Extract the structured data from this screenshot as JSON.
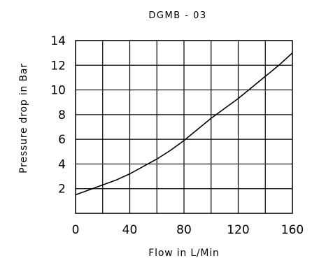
{
  "chart_data": {
    "type": "line",
    "title": "DGMB - 03",
    "xlabel": "Flow in L/Min",
    "ylabel": "Pressure drop in Bar",
    "xlim": [
      0,
      160
    ],
    "ylim": [
      0,
      14
    ],
    "x_ticks": [
      0,
      40,
      80,
      120,
      160
    ],
    "x_tick_labels": [
      "0",
      "40",
      "80",
      "120",
      "160"
    ],
    "y_ticks": [
      2,
      4,
      6,
      8,
      10,
      12,
      14
    ],
    "y_tick_labels": [
      "2",
      "4",
      "6",
      "8",
      "10",
      "12",
      "14"
    ],
    "grid_x": [
      0,
      20,
      40,
      60,
      80,
      100,
      120,
      140,
      160
    ],
    "grid_y": [
      0,
      2,
      4,
      6,
      8,
      10,
      12,
      14
    ],
    "grid": true,
    "series": [
      {
        "x": [
          0,
          10,
          20,
          30,
          40,
          50,
          60,
          70,
          80,
          90,
          100,
          110,
          120,
          130,
          140,
          150,
          160
        ],
        "y": [
          1.5,
          1.9,
          2.3,
          2.7,
          3.2,
          3.8,
          4.4,
          5.1,
          5.9,
          6.8,
          7.7,
          8.5,
          9.3,
          10.2,
          11.1,
          12.0,
          13.0
        ]
      }
    ]
  }
}
